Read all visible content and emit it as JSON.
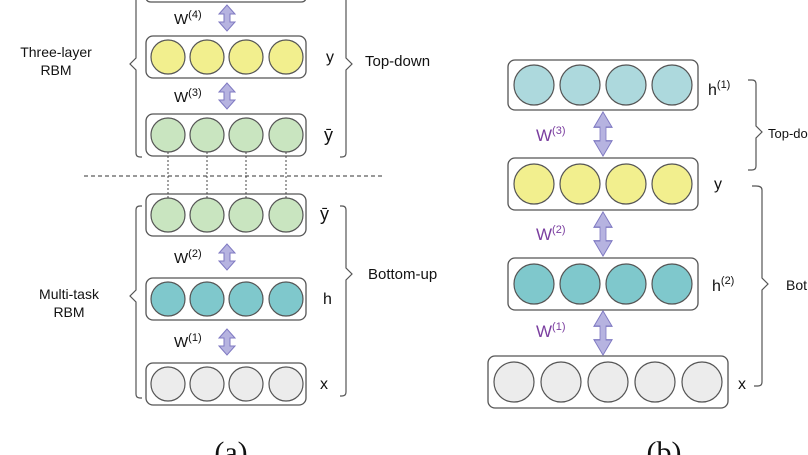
{
  "colors": {
    "yellow": "#f2ef8e",
    "light_green": "#c9e5c0",
    "teal": "#7fc8cc",
    "light_teal": "#add9dd",
    "gray": "#ececec",
    "arrow_fill": "#b6b3e0",
    "arrow_stroke": "#7f79c2",
    "box_stroke": "#555555",
    "w_label_b": "#7b3fa0"
  },
  "panel_a": {
    "caption": "(a)",
    "group_labels": {
      "three_layer_line1": "Three-layer",
      "three_layer_line2": "RBM",
      "multitask_line1": "Multi-task",
      "multitask_line2": "RBM"
    },
    "direction_labels": {
      "top_down": "Top-down",
      "bottom_up": "Bottom-up"
    },
    "layers": [
      {
        "name": "y",
        "units": 4,
        "color": "yellow"
      },
      {
        "name": "ȳ",
        "units": 4,
        "color": "light_green"
      },
      {
        "name": "ȳ",
        "units": 4,
        "color": "light_green"
      },
      {
        "name": "h",
        "units": 4,
        "color": "teal"
      },
      {
        "name": "x",
        "units": 4,
        "color": "gray"
      }
    ],
    "weights": [
      {
        "base": "W",
        "sup": "(4)"
      },
      {
        "base": "W",
        "sup": "(3)"
      },
      {
        "base": "W",
        "sup": "(2)"
      },
      {
        "base": "W",
        "sup": "(1)"
      }
    ]
  },
  "panel_b": {
    "caption": "(b)",
    "direction_labels": {
      "top_down": "Top-do",
      "bottom_up": "Bot"
    },
    "layers": [
      {
        "name": "h",
        "sup": "(1)",
        "units": 4,
        "color": "light_teal"
      },
      {
        "name": "y",
        "sup": "",
        "units": 4,
        "color": "yellow"
      },
      {
        "name": "h",
        "sup": "(2)",
        "units": 4,
        "color": "teal"
      },
      {
        "name": "x",
        "sup": "",
        "units": 5,
        "color": "gray"
      }
    ],
    "weights": [
      {
        "base": "W",
        "sup": "(3)"
      },
      {
        "base": "W",
        "sup": "(2)"
      },
      {
        "base": "W",
        "sup": "(1)"
      }
    ]
  }
}
